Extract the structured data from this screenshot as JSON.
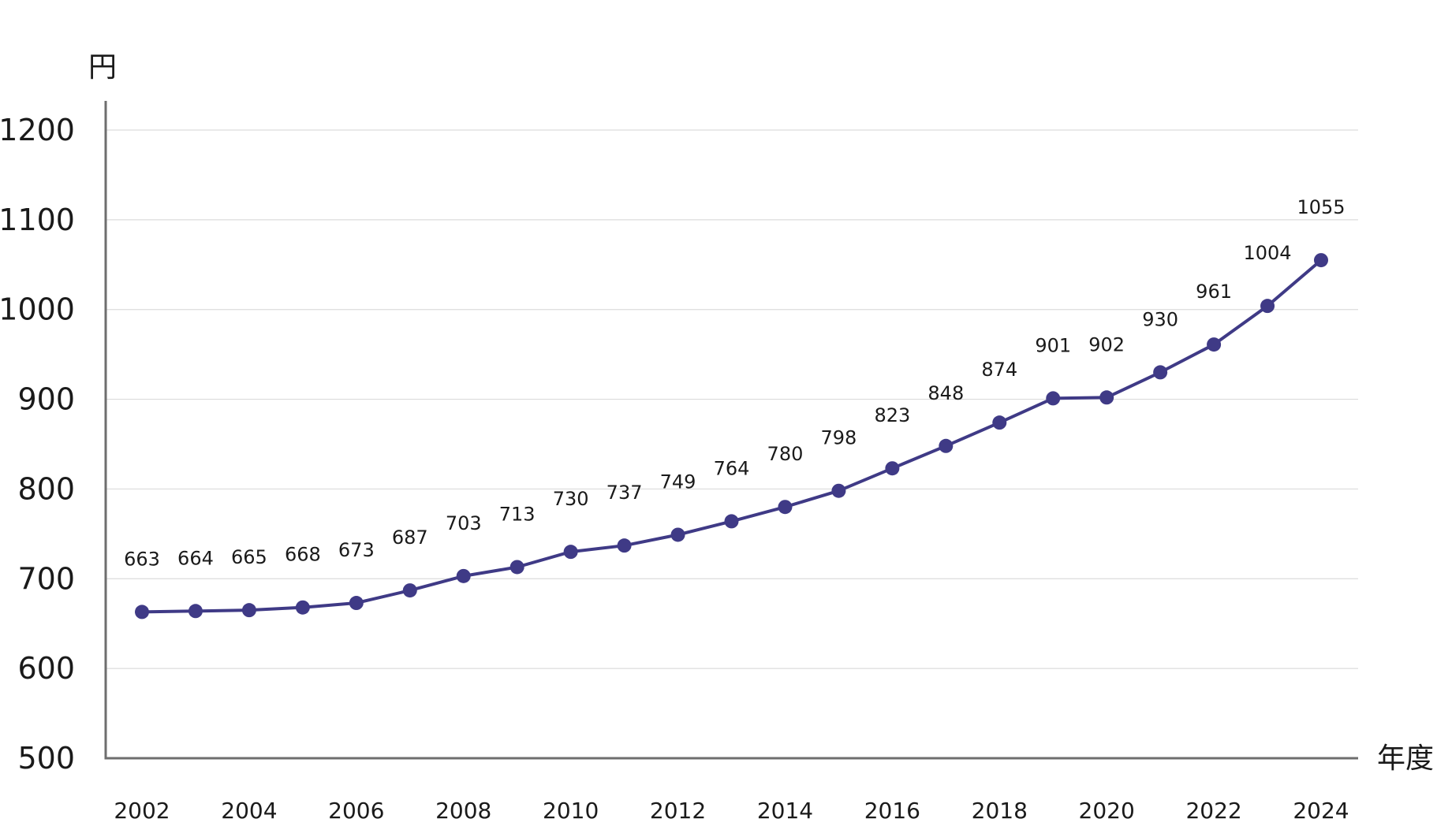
{
  "chart_data": {
    "type": "line",
    "title": "",
    "ylabel": "円",
    "xlabel": "年度",
    "ylim": [
      500,
      1200
    ],
    "yticks": [
      500,
      600,
      700,
      800,
      900,
      1000,
      1100,
      1200
    ],
    "xlim": [
      2002,
      2024
    ],
    "xticks": [
      2002,
      2004,
      2006,
      2008,
      2010,
      2012,
      2014,
      2016,
      2018,
      2020,
      2022,
      2024
    ],
    "grid": true,
    "legend": "none",
    "series": [
      {
        "color": "#3f3a86",
        "x": [
          2002,
          2003,
          2004,
          2005,
          2006,
          2007,
          2008,
          2009,
          2010,
          2011,
          2012,
          2013,
          2014,
          2015,
          2016,
          2017,
          2018,
          2019,
          2020,
          2021,
          2022,
          2023,
          2024
        ],
        "values": [
          663,
          664,
          665,
          668,
          673,
          687,
          703,
          713,
          730,
          737,
          749,
          764,
          780,
          798,
          823,
          848,
          874,
          901,
          902,
          930,
          961,
          1004,
          1055
        ]
      }
    ]
  }
}
